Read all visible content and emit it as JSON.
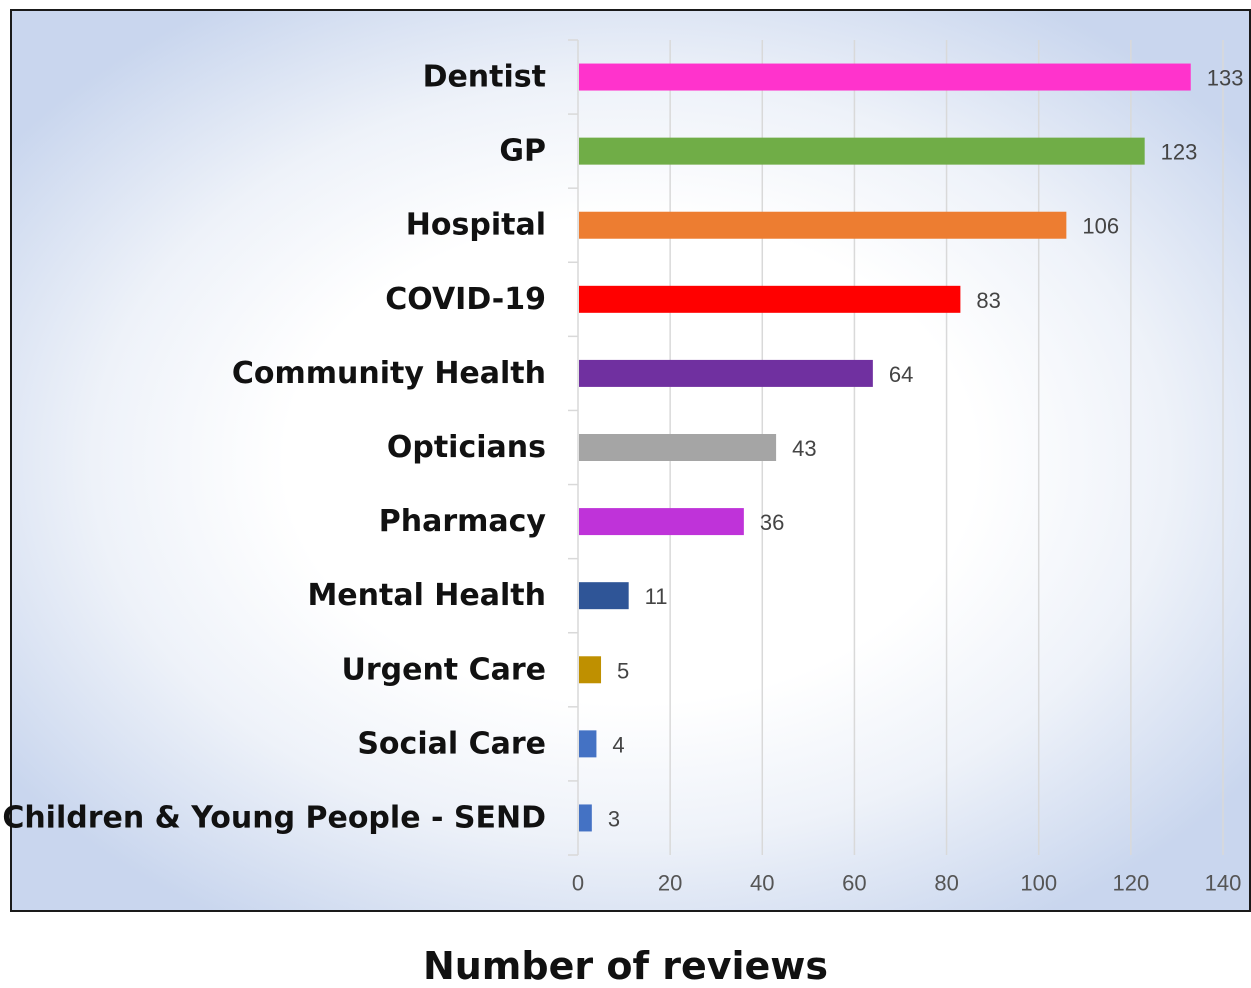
{
  "chart_data": {
    "type": "bar",
    "orientation": "horizontal",
    "xlabel": "Number of reviews",
    "xlim": [
      0,
      140
    ],
    "xticks": [
      0,
      20,
      40,
      60,
      80,
      100,
      120,
      140
    ],
    "grid": true,
    "categories": [
      "Dentist",
      "GP",
      "Hospital",
      "COVID-19",
      "Community Health",
      "Opticians",
      "Pharmacy",
      "Mental Health",
      "Urgent Care",
      "Social Care",
      "Children & Young People - SEND"
    ],
    "values": [
      133,
      123,
      106,
      83,
      64,
      43,
      36,
      11,
      5,
      4,
      3
    ],
    "colors": [
      "#ff33cc",
      "#70ad47",
      "#ed7d31",
      "#ff0000",
      "#7030a0",
      "#a5a5a5",
      "#bf33d9",
      "#2f5597",
      "#bf9000",
      "#4472c4",
      "#4472c4"
    ]
  }
}
